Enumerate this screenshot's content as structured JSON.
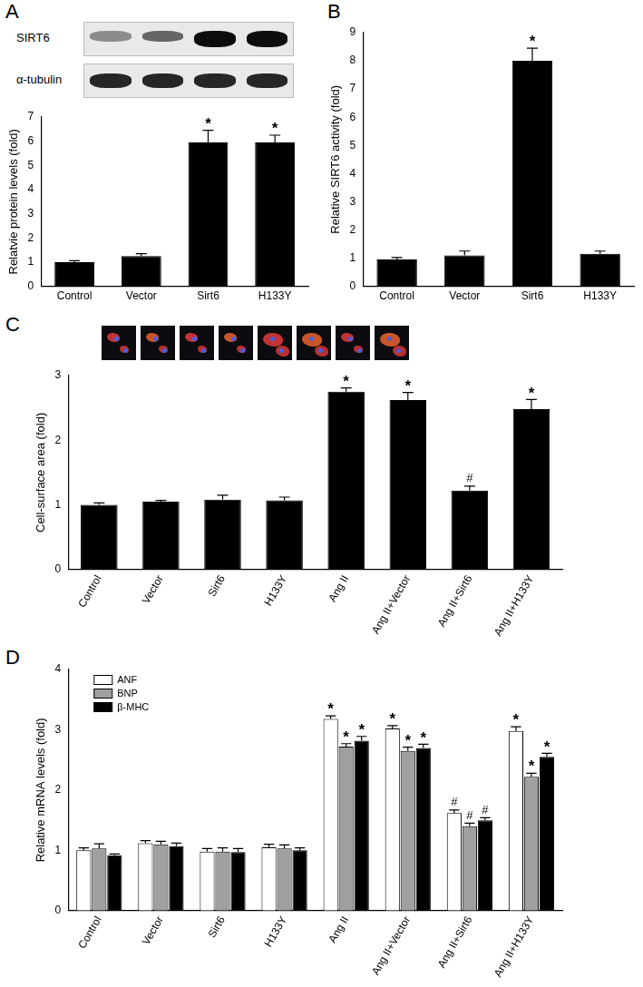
{
  "chart_data": [
    {
      "type": "bar",
      "title": "A",
      "annotations": [
        "SIRT6",
        "α-tubulin"
      ],
      "categories": [
        "Control",
        "Vector",
        "Sirt6",
        "H133Y"
      ],
      "values": [
        1.0,
        1.25,
        5.95,
        5.95
      ],
      "errors": [
        0.06,
        0.1,
        0.5,
        0.3
      ],
      "significance": [
        null,
        null,
        "*",
        "*"
      ],
      "color": "#000000",
      "y_label": "Relatvie protein levels (fold)",
      "ylim": [
        0,
        7
      ],
      "yticks": [
        0,
        1,
        2,
        3,
        4,
        5,
        6,
        7
      ],
      "grid": false
    },
    {
      "type": "bar",
      "title": "B",
      "categories": [
        "Control",
        "Vector",
        "Sirt6",
        "H133Y"
      ],
      "values": [
        0.95,
        1.1,
        8.0,
        1.15
      ],
      "errors": [
        0.07,
        0.15,
        0.45,
        0.1
      ],
      "significance": [
        null,
        null,
        "*",
        null
      ],
      "color": "#000000",
      "y_label": "Relative SIRT6 activity (fold)",
      "ylim": [
        0,
        9
      ],
      "yticks": [
        0,
        1,
        2,
        3,
        4,
        5,
        6,
        7,
        8,
        9
      ],
      "grid": false
    },
    {
      "type": "bar",
      "title": "C",
      "categories": [
        "Control",
        "Vector",
        "Sirt6",
        "H133Y",
        "Ang II",
        "Ang II+Vector",
        "Ang II+Sirt6",
        "Ang II+H133Y"
      ],
      "values": [
        1.0,
        1.05,
        1.08,
        1.07,
        2.75,
        2.62,
        1.22,
        2.48
      ],
      "errors": [
        0.03,
        0.02,
        0.07,
        0.05,
        0.06,
        0.12,
        0.07,
        0.15
      ],
      "significance": [
        null,
        null,
        null,
        null,
        "*",
        "*",
        "#",
        "*"
      ],
      "color": "#000000",
      "y_label": "Cell-surface area (fold)",
      "ylim": [
        0,
        3
      ],
      "yticks": [
        0,
        1,
        2,
        3
      ],
      "grid": false
    },
    {
      "type": "bar",
      "title": "D",
      "categories": [
        "Control",
        "Vector",
        "Sirt6",
        "H133Y",
        "Ang II",
        "Ang II+Vector",
        "Ang II+Sirt6",
        "Ang II+H133Y"
      ],
      "series": [
        {
          "name": "ANF",
          "color": "#ffffff",
          "values": [
            1.0,
            1.12,
            0.98,
            1.05,
            3.18,
            3.02,
            1.62,
            2.98
          ],
          "errors": [
            0.04,
            0.04,
            0.05,
            0.05,
            0.05,
            0.05,
            0.05,
            0.07
          ],
          "significance": [
            null,
            null,
            null,
            null,
            "*",
            "*",
            "#",
            "*"
          ]
        },
        {
          "name": "BNP",
          "color": "#a0a0a0",
          "values": [
            1.03,
            1.1,
            0.98,
            1.03,
            2.72,
            2.65,
            1.4,
            2.22
          ],
          "errors": [
            0.08,
            0.05,
            0.06,
            0.06,
            0.05,
            0.06,
            0.05,
            0.06
          ],
          "significance": [
            null,
            null,
            null,
            null,
            "*",
            "*",
            "#",
            "*"
          ]
        },
        {
          "name": "β-MHC",
          "color": "#000000",
          "values": [
            0.92,
            1.07,
            0.97,
            1.0,
            2.82,
            2.7,
            1.5,
            2.55
          ],
          "errors": [
            0.02,
            0.05,
            0.06,
            0.04,
            0.07,
            0.06,
            0.04,
            0.06
          ],
          "significance": [
            null,
            null,
            null,
            null,
            "*",
            "*",
            "#",
            "*"
          ]
        }
      ],
      "legend": "upper left",
      "y_label": "Relative mRNA levels (fold)",
      "ylim": [
        0,
        4
      ],
      "yticks": [
        0,
        1,
        2,
        3,
        4
      ],
      "grid": false
    }
  ]
}
